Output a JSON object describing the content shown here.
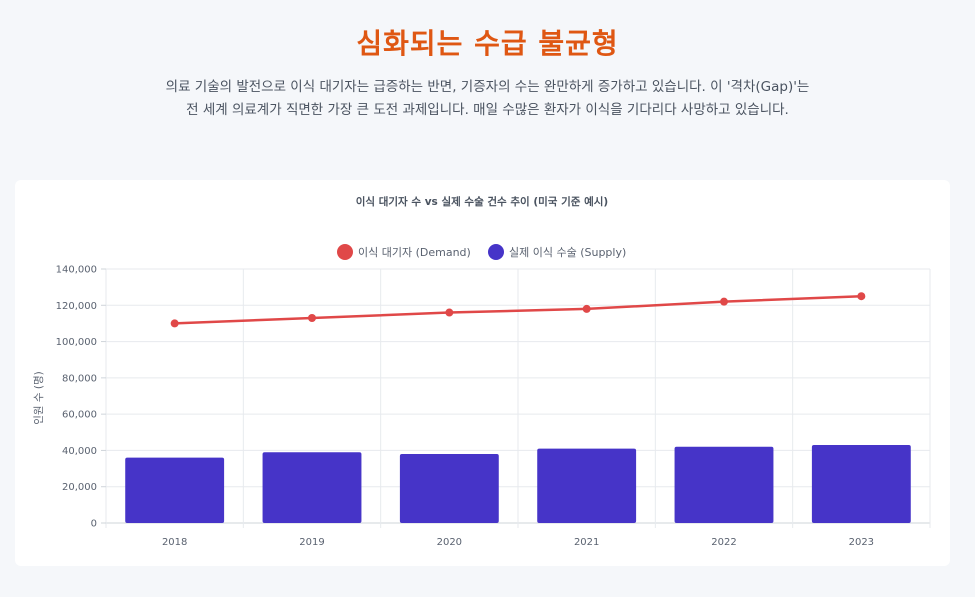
{
  "header": {
    "title": "심화되는 수급 불균형",
    "description_line1": "의료 기술의 발전으로 이식 대기자는 급증하는 반면, 기증자의 수는 완만하게 증가하고 있습니다. 이 '격차(Gap)'는",
    "description_line2": "전 세계 의료계가 직면한 가장 큰 도전 과제입니다. 매일 수많은 환자가 이식을 기다리다 사망하고 있습니다."
  },
  "colors": {
    "title": "#df5713",
    "demand": "#e04848",
    "supply": "#4634c8"
  },
  "chart_data": {
    "type": "bar",
    "title": "이식 대기자 수 vs 실제 수술 건수 추이 (미국 기준 예시)",
    "categories": [
      "2018",
      "2019",
      "2020",
      "2021",
      "2022",
      "2023"
    ],
    "series": [
      {
        "name": "이식 대기자 (Demand)",
        "type": "line",
        "values": [
          110000,
          113000,
          116000,
          118000,
          122000,
          125000
        ]
      },
      {
        "name": "실제 이식 수술 (Supply)",
        "type": "bar",
        "values": [
          36000,
          39000,
          38000,
          41000,
          42000,
          43000
        ]
      }
    ],
    "xlabel": "",
    "ylabel": "인원 수 (명)",
    "ylim": [
      0,
      140000
    ],
    "yticks": [
      0,
      20000,
      40000,
      60000,
      80000,
      100000,
      120000,
      140000
    ],
    "ytick_labels": [
      "0",
      "20,000",
      "40,000",
      "60,000",
      "80,000",
      "100,000",
      "120,000",
      "140,000"
    ],
    "grid": true,
    "legend_position": "top-center"
  }
}
